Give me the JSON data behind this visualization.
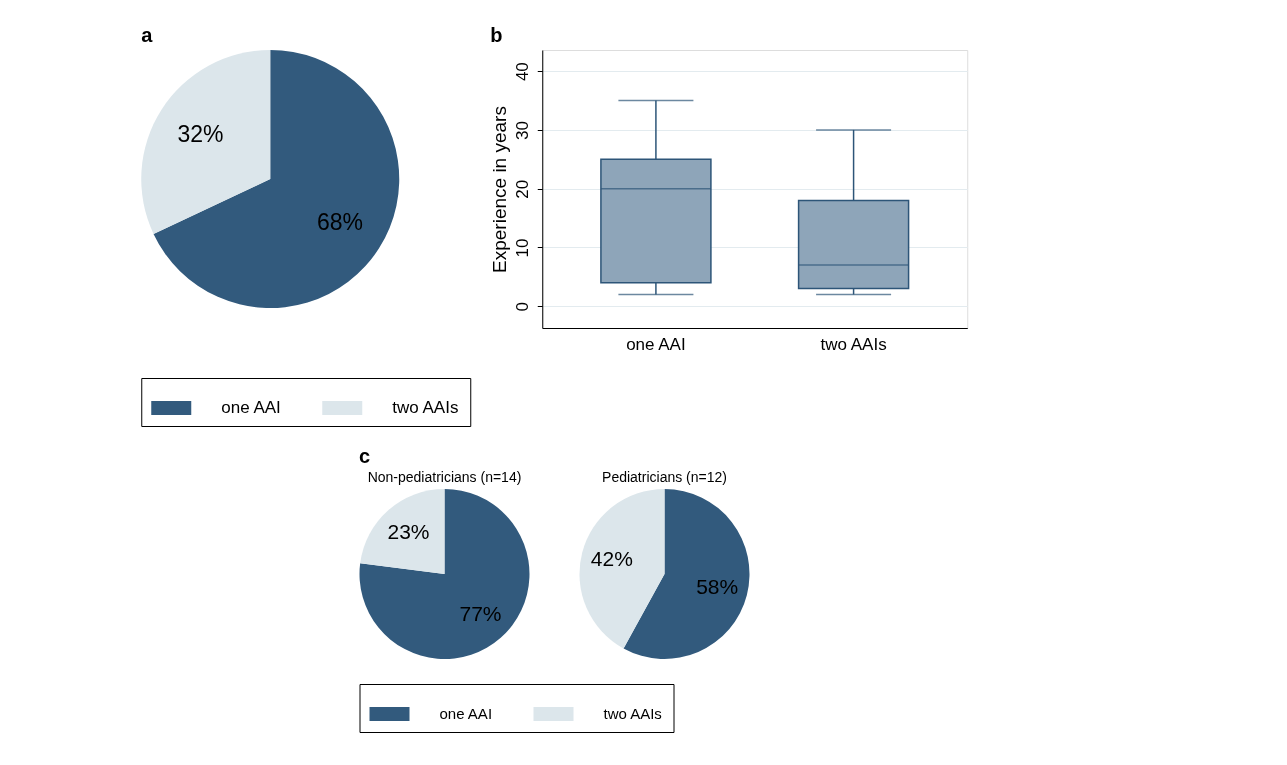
{
  "chart_data": [
    {
      "type": "pie",
      "title": "a",
      "categories": [
        "one AAI",
        "two AAIs"
      ],
      "values": [
        68,
        32
      ],
      "colors": [
        "#325a7d",
        "#dce6eb"
      ],
      "value_labels": [
        "68%",
        "32%"
      ],
      "legend": "bottom"
    },
    {
      "type": "box",
      "title": "b",
      "ylabel": "Experience in years",
      "categories": [
        "one AAI",
        "two AAIs"
      ],
      "color": "#8ea5b9",
      "boxes": [
        {
          "low": 2,
          "q1": 4,
          "median": 20,
          "q3": 25,
          "high": 35
        },
        {
          "low": 2,
          "q1": 3,
          "median": 7,
          "q3": 18,
          "high": 30
        }
      ],
      "ylim": [
        -3.7,
        43.6
      ],
      "yticks": [
        0,
        10,
        20,
        30,
        40
      ],
      "grid": "y"
    },
    {
      "type": "pie",
      "title": "c",
      "categories": [
        "one AAI",
        "two AAIs"
      ],
      "colors": [
        "#325a7d",
        "#dce6eb"
      ],
      "legend": "bottom",
      "series": [
        {
          "name": "Non-pediatricians (n=14)",
          "values": [
            77,
            23
          ],
          "value_labels": [
            "77%",
            "23%"
          ]
        },
        {
          "name": "Pediatricians (n=12)",
          "values": [
            58,
            42
          ],
          "value_labels": [
            "58%",
            "42%"
          ]
        }
      ]
    }
  ]
}
